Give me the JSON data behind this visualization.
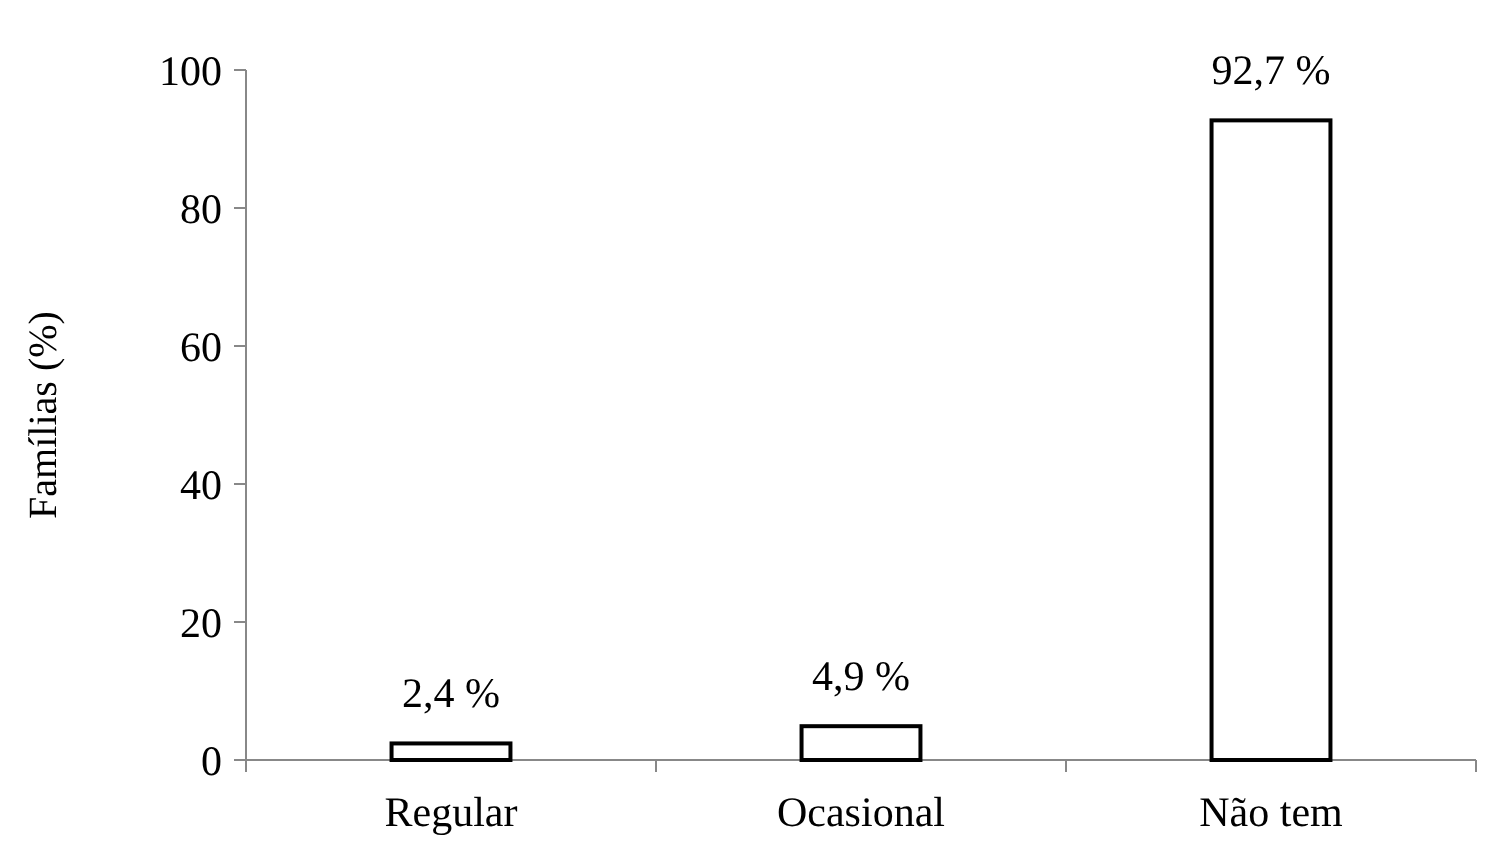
{
  "chart_data": {
    "type": "bar",
    "ylabel": "Famílias (%)",
    "categories": [
      "Regular",
      "Ocasional",
      "Não tem"
    ],
    "values": [
      2.4,
      4.9,
      92.7
    ],
    "value_labels": [
      "2,4 %",
      "4,9 %",
      "92,7 %"
    ],
    "color": "#ffffff",
    "ylim": [
      0,
      100
    ],
    "yticks": [
      0,
      20,
      40,
      60,
      80,
      100
    ],
    "grid": false
  }
}
